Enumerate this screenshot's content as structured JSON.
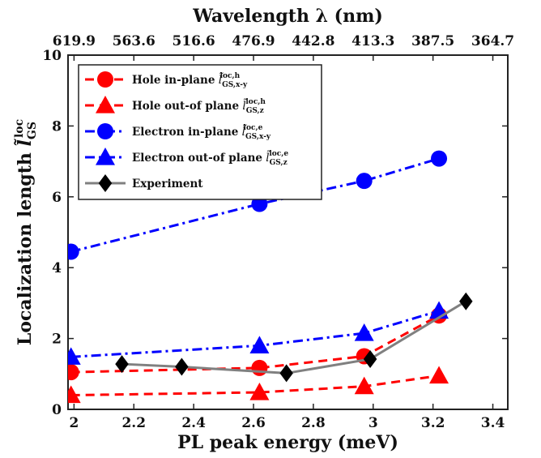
{
  "chart_data": {
    "type": "line",
    "title": "",
    "xlabel": "PL peak energy (meV)",
    "ylabel": "Localization length",
    "ylabel_symbol": "l̃",
    "ylabel_sub": "GS",
    "ylabel_sup": "loc",
    "top_label": "Wavelength λ (nm)",
    "xlim": [
      1.98,
      3.45
    ],
    "ylim": [
      0,
      10
    ],
    "xticks": [
      2,
      2.2,
      2.4,
      2.6,
      2.8,
      3,
      3.2,
      3.4
    ],
    "xtick_labels": [
      "2",
      "2.2",
      "2.4",
      "2.6",
      "2.8",
      "3",
      "3.2",
      "3.4"
    ],
    "yticks": [
      0,
      2,
      4,
      6,
      8,
      10
    ],
    "ytick_labels": [
      "0",
      "2",
      "4",
      "6",
      "8",
      "10"
    ],
    "top_ticks": [
      2.0,
      2.2,
      2.4,
      2.6,
      2.8,
      3.0,
      3.2,
      3.4
    ],
    "top_tick_labels": [
      "619.9",
      "563.6",
      "516.6",
      "476.9",
      "442.8",
      "413.3",
      "387.5",
      "364.7"
    ],
    "legend_placement": "top-left",
    "grid": false,
    "series": [
      {
        "name": "Hole in-plane",
        "sub": "GS,x-y",
        "sup": "loc,h",
        "color": "#ff0000",
        "marker": "circle",
        "linestyle": "dashed",
        "x": [
          1.99,
          2.62,
          2.97,
          3.22
        ],
        "y": [
          1.05,
          1.17,
          1.5,
          2.65
        ]
      },
      {
        "name": "Hole out-of plane",
        "sub": "GS,z",
        "sup": "loc,h",
        "color": "#ff0000",
        "marker": "triangle",
        "linestyle": "dashed",
        "x": [
          1.99,
          2.62,
          2.97,
          3.22
        ],
        "y": [
          0.4,
          0.48,
          0.65,
          0.95
        ]
      },
      {
        "name": "Electron in-plane",
        "sub": "GS,x-y",
        "sup": "loc,e",
        "color": "#0000ff",
        "marker": "circle",
        "linestyle": "dashdot",
        "x": [
          1.99,
          2.62,
          2.97,
          3.22
        ],
        "y": [
          4.45,
          5.8,
          6.45,
          7.08
        ]
      },
      {
        "name": "Electron out-of plane",
        "sub": "GS,z",
        "sup": "loc,e",
        "color": "#0000ff",
        "marker": "triangle",
        "linestyle": "dashdot",
        "x": [
          1.99,
          2.62,
          2.97,
          3.22
        ],
        "y": [
          1.48,
          1.8,
          2.15,
          2.78
        ]
      },
      {
        "name": "Experiment",
        "sub": "",
        "sup": "",
        "color": "#808080",
        "marker_color": "#000000",
        "marker": "diamond",
        "linestyle": "solid",
        "x": [
          2.16,
          2.36,
          2.71,
          2.99,
          3.31
        ],
        "y": [
          1.28,
          1.2,
          1.02,
          1.42,
          3.05
        ]
      }
    ]
  }
}
